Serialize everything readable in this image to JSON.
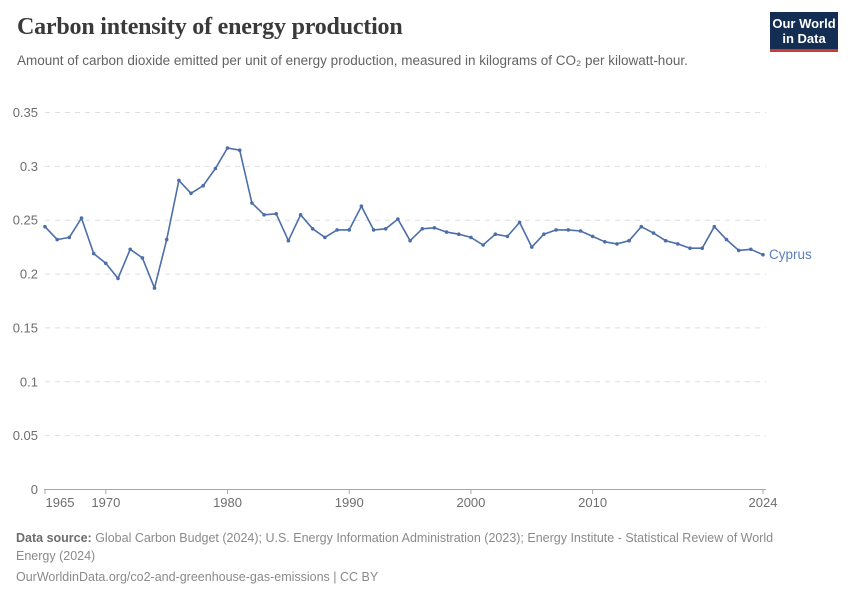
{
  "header": {
    "title": "Carbon intensity of energy production",
    "subtitle": "Amount of carbon dioxide emitted per unit of energy production, measured in kilograms of CO₂ per kilowatt-hour.",
    "logo": {
      "line1": "Our World",
      "line2": "in Data"
    }
  },
  "chart_data": {
    "type": "line",
    "title": "Carbon intensity of energy production",
    "ylabel": "",
    "xlabel": "",
    "unit": "kilograms of CO₂ per kilowatt-hour",
    "xlim": [
      1965,
      2024
    ],
    "ylim": [
      0,
      0.35
    ],
    "grid": "horizontal-dashed",
    "legend_position": "end-of-line-label",
    "yticks": [
      {
        "value": 0,
        "label": "0"
      },
      {
        "value": 0.05,
        "label": "0.05"
      },
      {
        "value": 0.1,
        "label": "0.1"
      },
      {
        "value": 0.15,
        "label": "0.15"
      },
      {
        "value": 0.2,
        "label": "0.2"
      },
      {
        "value": 0.25,
        "label": "0.25"
      },
      {
        "value": 0.3,
        "label": "0.3"
      },
      {
        "value": 0.35,
        "label": "0.35"
      }
    ],
    "xticks": [
      1965,
      1970,
      1980,
      1990,
      2000,
      2010,
      2024
    ],
    "series": [
      {
        "name": "Cyprus",
        "color": "#4c6ea9",
        "label_color": "#5b7db8",
        "x": [
          1965,
          1966,
          1967,
          1968,
          1969,
          1970,
          1971,
          1972,
          1973,
          1974,
          1975,
          1976,
          1977,
          1978,
          1979,
          1980,
          1981,
          1982,
          1983,
          1984,
          1985,
          1986,
          1987,
          1988,
          1989,
          1990,
          1991,
          1992,
          1993,
          1994,
          1995,
          1996,
          1997,
          1998,
          1999,
          2000,
          2001,
          2002,
          2003,
          2004,
          2005,
          2006,
          2007,
          2008,
          2009,
          2010,
          2011,
          2012,
          2013,
          2014,
          2015,
          2016,
          2017,
          2018,
          2019,
          2020,
          2021,
          2022,
          2023,
          2024
        ],
        "values": [
          0.244,
          0.232,
          0.234,
          0.252,
          0.219,
          0.21,
          0.196,
          0.223,
          0.215,
          0.187,
          0.232,
          0.287,
          0.275,
          0.282,
          0.298,
          0.317,
          0.315,
          0.266,
          0.255,
          0.256,
          0.231,
          0.255,
          0.242,
          0.234,
          0.241,
          0.241,
          0.263,
          0.241,
          0.242,
          0.251,
          0.231,
          0.242,
          0.243,
          0.239,
          0.237,
          0.234,
          0.227,
          0.237,
          0.235,
          0.248,
          0.225,
          0.237,
          0.241,
          0.241,
          0.24,
          0.235,
          0.23,
          0.228,
          0.231,
          0.244,
          0.238,
          0.231,
          0.228,
          0.224,
          0.224,
          0.244,
          0.232,
          0.222,
          0.223,
          0.218
        ]
      }
    ]
  },
  "footer": {
    "data_source_label": "Data source:",
    "data_source_text": " Global Carbon Budget (2024); U.S. Energy Information Administration (2023); Energy Institute - Statistical Review of World Energy (2024)",
    "link_line": "OurWorldinData.org/co2-and-greenhouse-gas-emissions | CC BY"
  },
  "colors": {
    "title": "#3a3a3a",
    "subtitle": "#636363",
    "axis_text": "#6e6e6e",
    "gridline": "#dedede",
    "axis_line": "#a8a8a8",
    "series_line": "#4c6ea9",
    "logo_bg": "#132e52",
    "logo_red": "#cf3a34"
  }
}
